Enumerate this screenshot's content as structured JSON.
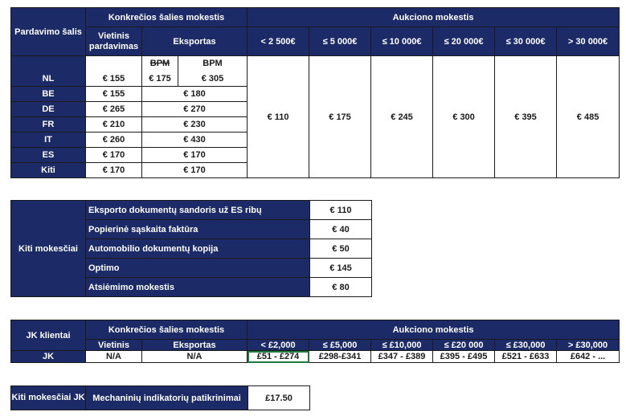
{
  "table1": {
    "h_country": "Pardavimo šalis",
    "h_country_fee": "Konkrečios šalies mokestis",
    "h_auction_fee": "Aukciono mokestis",
    "h_local": "Vietinis pardavimas",
    "h_export": "Eksportas",
    "ranges": [
      "< 2 500€",
      "≤ 5 000€",
      "≤ 10 000€",
      "≤ 20 000€",
      "≤ 30 000€",
      "> 30 000€"
    ],
    "nl": {
      "country": "NL",
      "bpm_label": "BPM",
      "bpm_label2": "BPM",
      "local": "€ 155",
      "bpm_value": "€ 175",
      "export": "€ 305"
    },
    "rows": [
      {
        "country": "BE",
        "local": "€ 155",
        "export": "€ 180"
      },
      {
        "country": "DE",
        "local": "€ 265",
        "export": "€ 270"
      },
      {
        "country": "FR",
        "local": "€ 210",
        "export": "€ 230"
      },
      {
        "country": "IT",
        "local": "€ 260",
        "export": "€ 430"
      },
      {
        "country": "ES",
        "local": "€ 170",
        "export": "€ 170"
      },
      {
        "country": "Kiti",
        "local": "€ 170",
        "export": "€ 170"
      }
    ],
    "auction_values": [
      "€ 110",
      "€ 175",
      "€ 245",
      "€ 300",
      "€ 395",
      "€ 485"
    ]
  },
  "table2": {
    "label": "Kiti mokesčiai",
    "items": [
      {
        "name": "Eksporto dokumentų sandoris už ES ribų",
        "value": "€ 110"
      },
      {
        "name": "Popierinė sąskaita faktūra",
        "value": "€ 40"
      },
      {
        "name": "Automobilio dokumentų kopija",
        "value": "€ 50"
      },
      {
        "name": "Optimo",
        "value": "€ 145"
      },
      {
        "name": "Atsiėmimo mokestis",
        "value": "€ 80"
      }
    ]
  },
  "table3": {
    "h_clients": "JK klientai",
    "h_country_fee": "Konkrečios šalies mokestis",
    "h_auction_fee": "Aukciono mokestis",
    "h_local": "Vietinis",
    "h_export": "Eksportas",
    "ranges": [
      "< £2,000",
      "≤ £5,000",
      "≤ £10,000",
      "≤ £20 000",
      "≤ £30,000",
      "> £30,000"
    ],
    "row": {
      "label": "JK",
      "local": "N/A",
      "export": "N/A",
      "values": [
        "£51 - £274",
        "£298-£341",
        "£347 - £389",
        "£395 - £495",
        "£521 - £633",
        "£642 - ..."
      ]
    }
  },
  "table4": {
    "label": "Kiti mokesčiai JK",
    "item": "Mechaninių indikatorių patikrinimai",
    "value": "£17.50"
  }
}
